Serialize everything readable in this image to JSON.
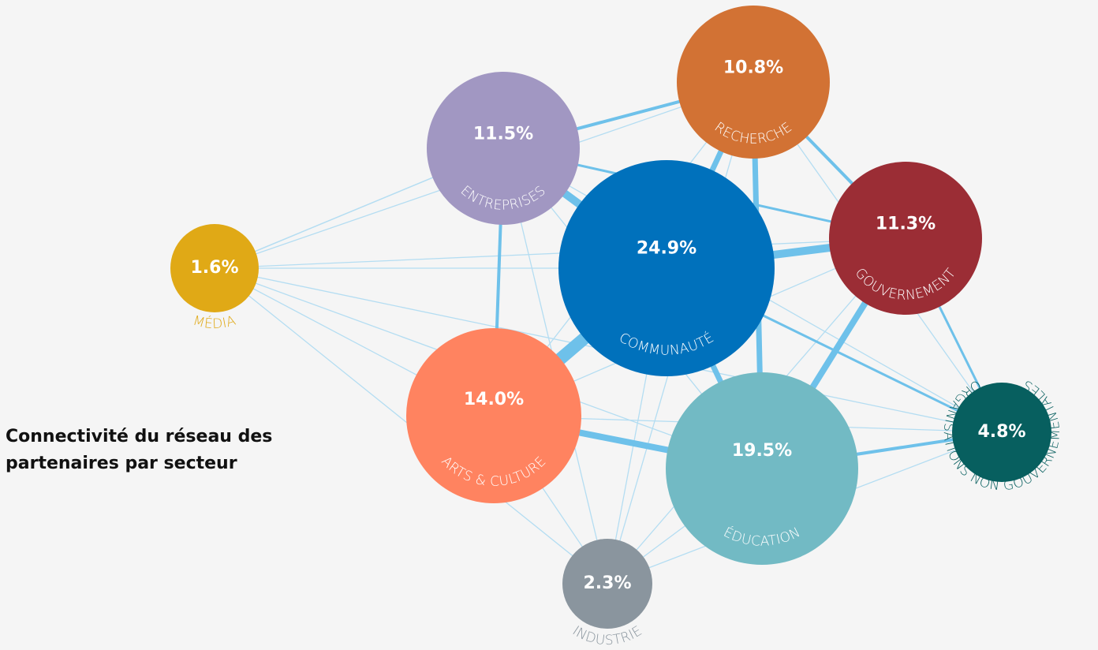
{
  "title": [
    "Connectivité du réseau des",
    "partenaires  par secteur"
  ],
  "nodes": [
    {
      "label": "MÉDIA",
      "value": "1.6%"
    },
    {
      "label": "ENTREPRISES",
      "value": "11.5%"
    },
    {
      "label": "RECHERCHE",
      "value": "10.8%"
    },
    {
      "label": "GOUVERNEMENT",
      "value": "11.3%"
    },
    {
      "label": "COMMUNAUTÉ",
      "value": "24.9%"
    },
    {
      "label": "ARTS & CULTURE",
      "value": "14.0%"
    },
    {
      "label": "ÉDUCATION",
      "value": "19.5%"
    },
    {
      "label": "INDUSTRIE",
      "value": "2.3%"
    },
    {
      "label": "ORGANISATIONS NON GOUVERNEMENTALES",
      "value": "4.8%"
    }
  ]
}
